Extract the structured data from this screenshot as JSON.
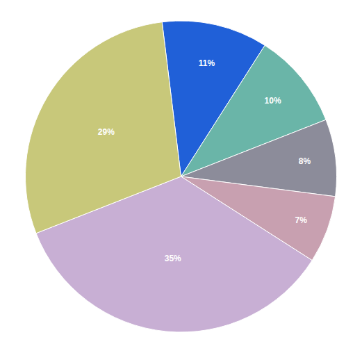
{
  "chart_data": {
    "type": "pie",
    "values": [
      11,
      10,
      8,
      7,
      35,
      29
    ],
    "value_labels": [
      "11%",
      "10%",
      "8%",
      "7%",
      "35%",
      "29%"
    ],
    "colors": [
      "#2060d8",
      "#6ab5a8",
      "#8c8c9a",
      "#c8a0b0",
      "#c8afd4",
      "#c8c87a"
    ],
    "data_labels": true
  }
}
